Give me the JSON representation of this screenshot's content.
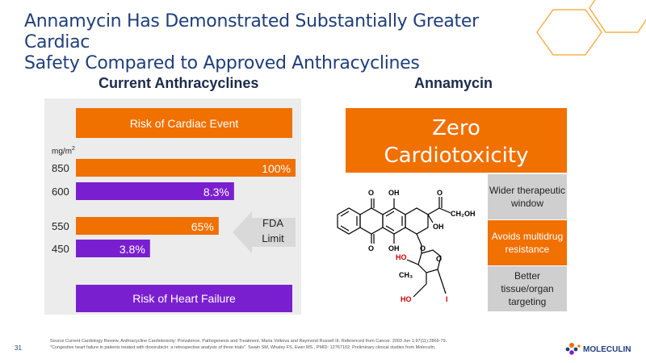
{
  "slide": {
    "title_line1": "Annamycin Has Demonstrated Substantially Greater Cardiac",
    "title_line2": "Safety Compared to Approved Anthracyclines",
    "page_number": "31"
  },
  "left": {
    "heading": "Current Anthracyclines",
    "cardiac_label": "Risk of Cardiac Event",
    "heart_failure_label": "Risk of Heart Failure",
    "unit": "mg/m",
    "unit_sup": "2",
    "fda_line1": "FDA",
    "fda_line2": "Limit"
  },
  "right": {
    "heading": "Annamycin",
    "zero_line1": "Zero",
    "zero_line2": "Cardiotoxicity",
    "benefits": [
      "Wider therapeutic window",
      "Avoids multidrug resistance",
      "Better tissue/organ targeting"
    ]
  },
  "molecule_labels": {
    "o1": "O",
    "oh1": "OH",
    "o2": "O",
    "ch2oh": "CH₂OH",
    "oh2": "OH",
    "o3": "O",
    "oh3": "OH",
    "o4": "O",
    "ho1": "HO",
    "o5": "O",
    "ch3": "CH₃",
    "ho2": "HO",
    "i": "I"
  },
  "footer": {
    "source_line1": "Source Current Cardiology Review, Anthracycline Cardiotoxicity: Prevalence, Pathogenesis and Treatment, Maria Volkova and Raymond Russell III. Referenced from Cancer. 2003 Jun 1;97(11):2869-79.",
    "source_line2": "\"Congestive heart failure in patients treated with doxorubicin: a retrospective analysis of three trials\". Swain SM, Whaley FS, Ewer MS., PMID: 12767102; Preliminary clinical studies from Moleculin.",
    "logo_text": "MOLECULIN"
  },
  "colors": {
    "orange": "#f07000",
    "purple": "#7a1fd0",
    "navy": "#1f3f7a",
    "panel_gray": "#ececec"
  },
  "chart_data": {
    "type": "bar",
    "orientation": "horizontal",
    "categories": [
      "850",
      "600",
      "550",
      "450"
    ],
    "series": [
      {
        "name": "Risk of Cardiac Event",
        "values": [
          100,
          null,
          65,
          null
        ],
        "labels": [
          "100%",
          null,
          "65%",
          null
        ],
        "color": "#f07000"
      },
      {
        "name": "Risk of Heart Failure",
        "values": [
          null,
          8.3,
          null,
          3.8
        ],
        "labels": [
          null,
          "8.3%",
          null,
          "3.8%"
        ],
        "color": "#7a1fd0"
      }
    ],
    "xlim": [
      0,
      100
    ],
    "ylabel": "mg/m2",
    "grid": false
  }
}
